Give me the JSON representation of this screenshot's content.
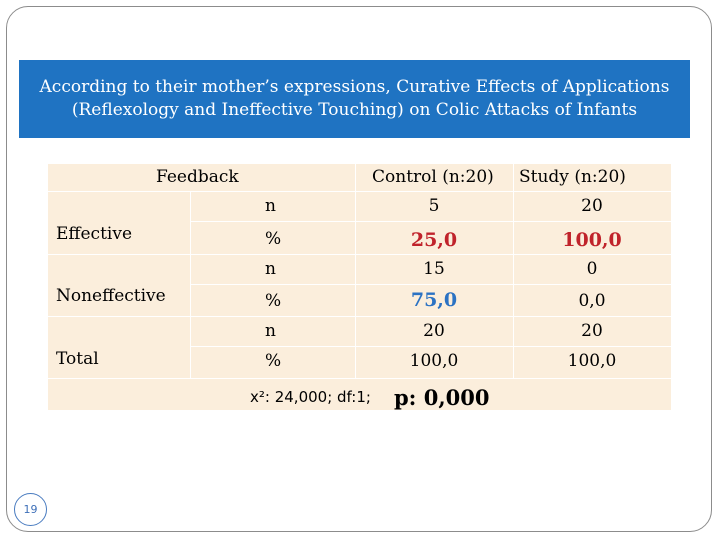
{
  "title": "According to their mother’s expressions, Curative Effects of Applications (Reflexology and Ineffective Touching) on Colic Attacks of Infants",
  "table": {
    "header": {
      "feedback": "Feedback",
      "control": "Control (n:20)",
      "study": "Study (n:20)"
    },
    "rows": [
      {
        "label": "Effective",
        "n_label": "n",
        "pct_label": "%",
        "control_n": "5",
        "study_n": "20",
        "control_pct": "25,0",
        "study_pct": "100,0"
      },
      {
        "label": "Noneffective",
        "n_label": "n",
        "pct_label": "%",
        "control_n": "15",
        "study_n": "0",
        "control_pct": "75,0",
        "study_pct": "0,0"
      },
      {
        "label": "Total",
        "n_label": "n",
        "pct_label": "%",
        "control_n": "20",
        "study_n": "20",
        "control_pct": "100,0",
        "study_pct": "100,0"
      }
    ],
    "stats": {
      "chi": "x²: 24,000; df:1;",
      "p": "p: 0,000"
    }
  },
  "colors": {
    "title_bg": "#1f73c2",
    "table_bg": "#fbeedc",
    "highlight_red": "#c0232b",
    "highlight_blue": "#2b72c3"
  },
  "slide_number": "19"
}
